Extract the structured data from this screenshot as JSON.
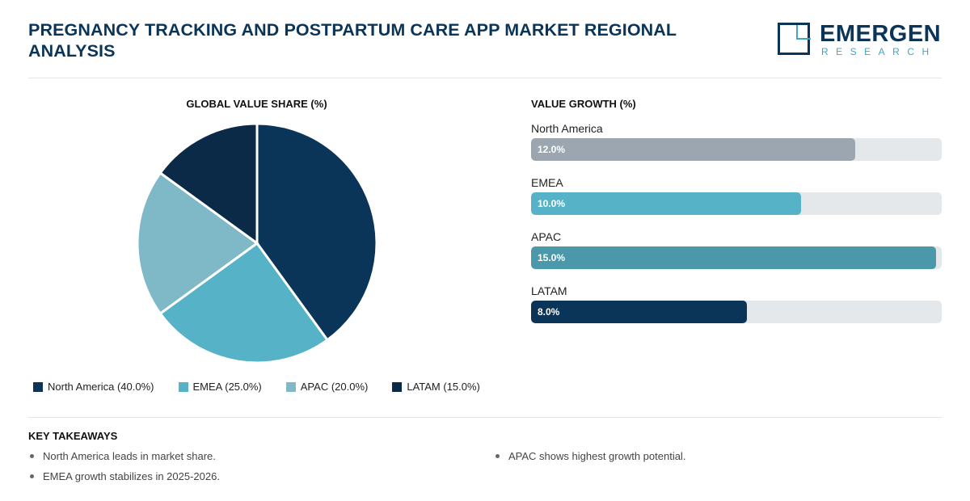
{
  "header": {
    "title": "PREGNANCY TRACKING AND POSTPARTUM CARE APP MARKET REGIONAL ANALYSIS",
    "logo_main": "EMERGEN",
    "logo_sub": "RESEARCH"
  },
  "colors": {
    "brand_navy": "#0b3558",
    "brand_teal": "#3fa7c2",
    "track": "#e4e8eb"
  },
  "chart_data": [
    {
      "type": "pie",
      "title": "GLOBAL VALUE SHARE (%)",
      "categories": [
        "North America",
        "EMEA",
        "APAC",
        "LATAM"
      ],
      "values": [
        40.0,
        25.0,
        20.0,
        15.0
      ],
      "colors": [
        "#0b3558",
        "#56b3c7",
        "#7fb8c6",
        "#0a2a47"
      ],
      "legend_labels": [
        "North America (40.0%)",
        "EMEA (25.0%)",
        "APAC (20.0%)",
        "LATAM (15.0%)"
      ],
      "legend": "bottom"
    },
    {
      "type": "bar",
      "orientation": "horizontal",
      "title": "VALUE GROWTH (%)",
      "categories": [
        "North America",
        "EMEA",
        "APAC",
        "LATAM"
      ],
      "values": [
        12.0,
        10.0,
        15.0,
        8.0
      ],
      "value_labels": [
        "12.0%",
        "10.0%",
        "15.0%",
        "8.0%"
      ],
      "colors": [
        "#9ca6b0",
        "#56b3c7",
        "#4a98a9",
        "#0b3558"
      ],
      "xlim": [
        0,
        15.2
      ]
    }
  ],
  "takeaways": {
    "title": "KEY TAKEAWAYS",
    "left": [
      "North America leads in market share.",
      "EMEA growth stabilizes in 2025-2026."
    ],
    "right": [
      "APAC shows highest growth potential."
    ]
  }
}
